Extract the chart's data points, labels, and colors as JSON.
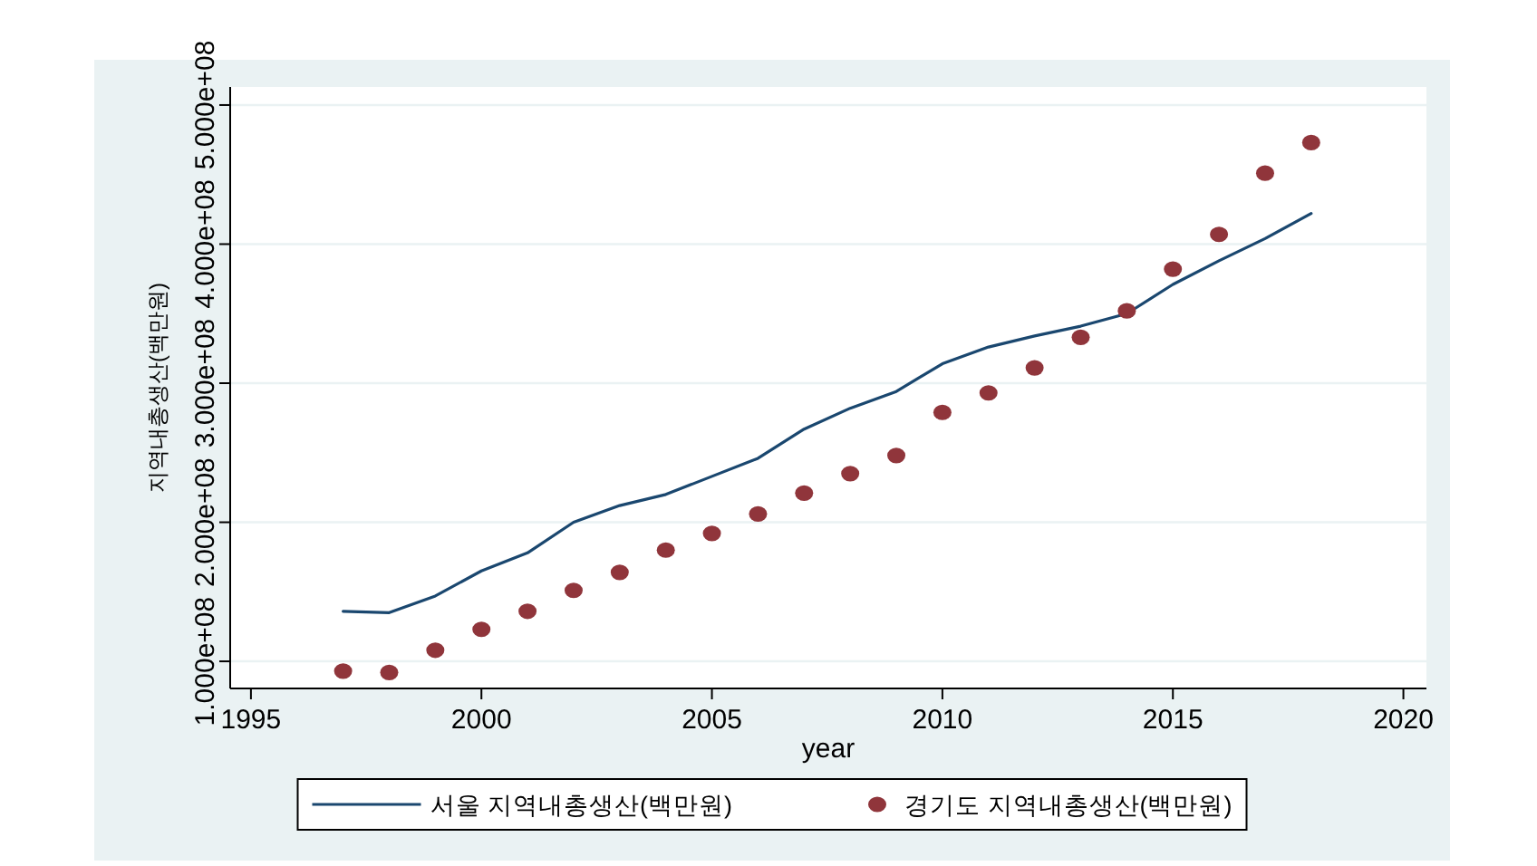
{
  "chart_data": {
    "type": "line",
    "xlabel": "year",
    "ylabel": "지역내총생산(백만원)",
    "x": [
      1997,
      1998,
      1999,
      2000,
      2001,
      2002,
      2003,
      2004,
      2005,
      2006,
      2007,
      2008,
      2009,
      2010,
      2011,
      2012,
      2013,
      2014,
      2015,
      2016,
      2017,
      2018
    ],
    "series": [
      {
        "name": "서울 지역내총생산(백만원)",
        "marker": "none",
        "color": "#1a476f",
        "values": [
          136000000,
          135000000,
          147000000,
          165000000,
          178000000,
          200000000,
          212000000,
          220000000,
          233000000,
          246000000,
          267000000,
          282000000,
          294000000,
          314000000,
          326000000,
          334000000,
          341000000,
          350000000,
          371000000,
          388000000,
          404000000,
          422000000
        ]
      },
      {
        "name": "경기도 지역내총생산(백만원)",
        "type": "scatter",
        "marker": "circle",
        "color": "#90353b",
        "values": [
          93000000,
          92000000,
          108000000,
          123000000,
          136000000,
          151000000,
          164000000,
          180000000,
          192000000,
          206000000,
          221000000,
          235000000,
          248000000,
          279000000,
          293000000,
          311000000,
          333000000,
          352000000,
          382000000,
          407000000,
          451000000,
          473000000
        ]
      }
    ],
    "xlim": [
      1994.55,
      2020.5
    ],
    "xticks": [
      1995,
      2000,
      2005,
      2010,
      2015,
      2020
    ],
    "ylim": [
      80500000,
      513000000
    ],
    "yticks": [
      {
        "value": 100000000,
        "label": "1.000e+08"
      },
      {
        "value": 200000000,
        "label": "2.000e+08"
      },
      {
        "value": 300000000,
        "label": "3.000e+08"
      },
      {
        "value": 400000000,
        "label": "4.000e+08"
      },
      {
        "value": 500000000,
        "label": "5.000e+08"
      }
    ],
    "grid": "y",
    "legend": "bottom"
  }
}
